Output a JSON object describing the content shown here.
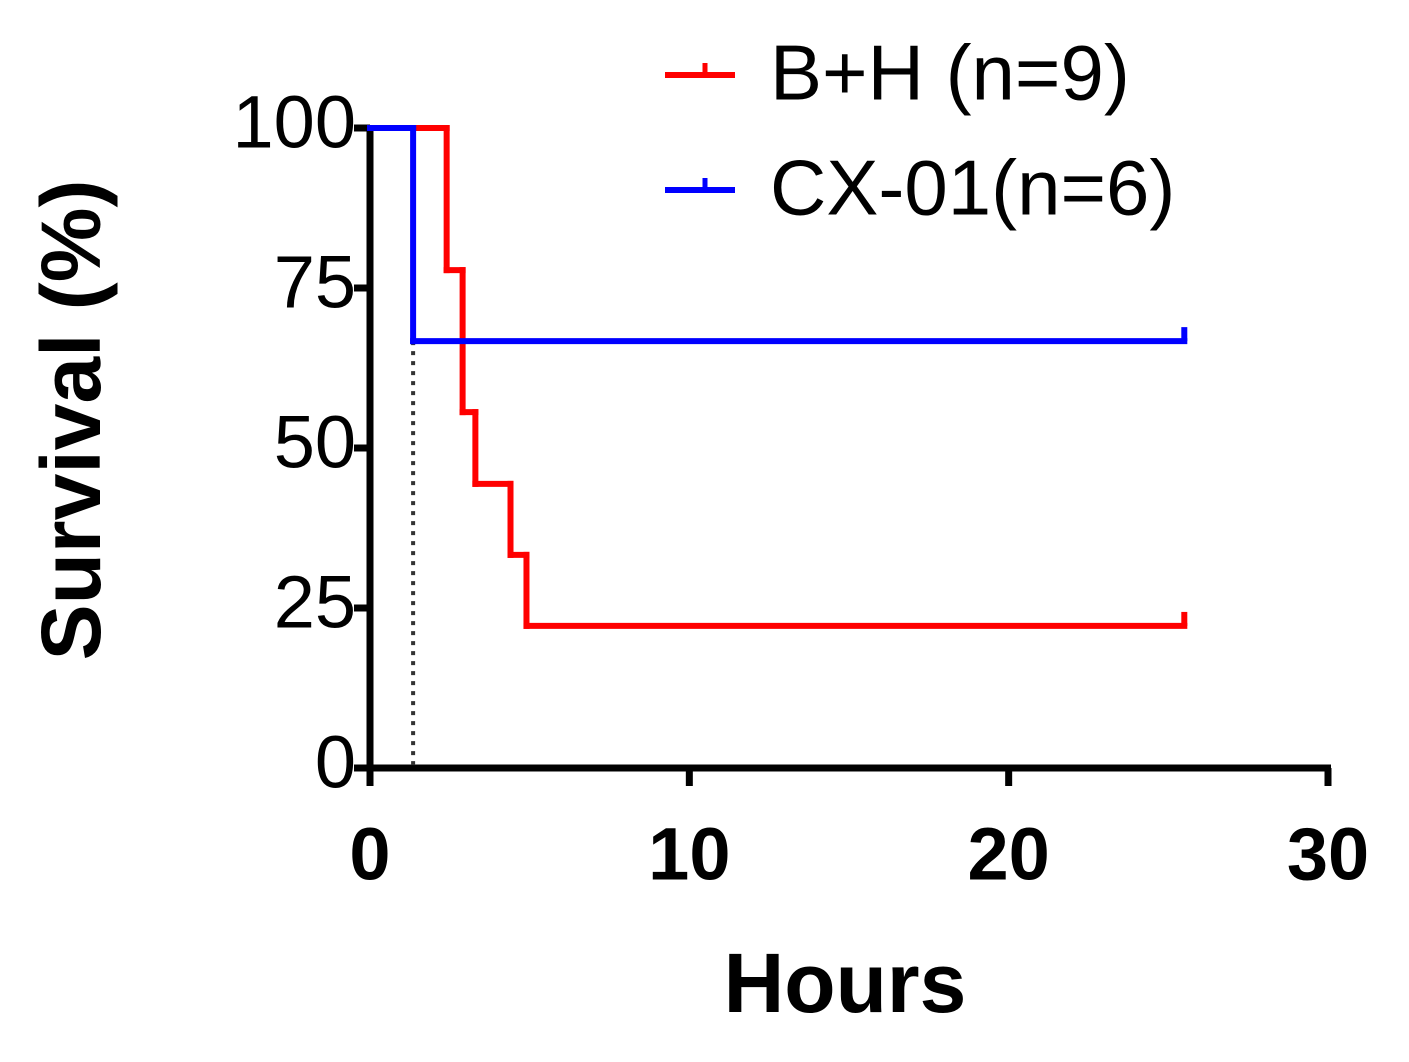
{
  "chart_data": {
    "type": "survival",
    "xlabel": "Hours",
    "ylabel": "Survival (%)",
    "xlim": [
      0,
      30
    ],
    "xticks": [
      0,
      10,
      20,
      30
    ],
    "ylim": [
      0,
      100
    ],
    "yticks": [
      0,
      25,
      50,
      75,
      100
    ],
    "legend": "top-right",
    "vline": {
      "x": 1.35,
      "style": "dotted",
      "color": "#333333"
    },
    "series": [
      {
        "name": "B+H (n=9)",
        "color": "#ff0000",
        "x": [
          0,
          2.4,
          2.9,
          3.3,
          4.4,
          4.9,
          25.5
        ],
        "values": [
          100,
          77.8,
          55.6,
          44.4,
          33.3,
          22.2,
          22.2
        ]
      },
      {
        "name": "CX-01(n=6)",
        "color": "#0000ff",
        "x": [
          0,
          1.35,
          25.5
        ],
        "values": [
          100,
          66.7,
          66.7
        ]
      }
    ]
  }
}
